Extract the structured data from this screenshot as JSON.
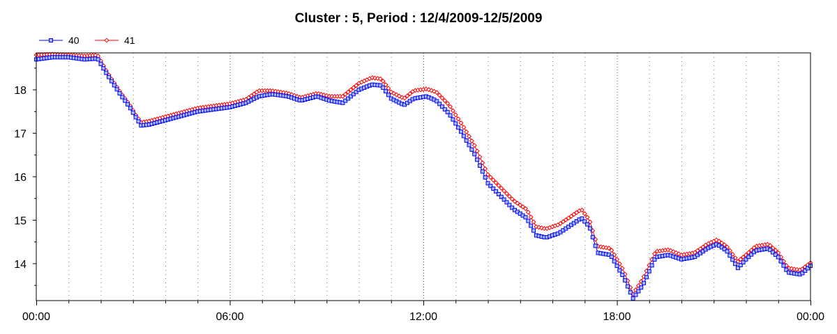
{
  "chart_data": {
    "type": "line",
    "title": "Cluster : 5, Period : 12/4/2009-12/5/2009",
    "xlabel": "",
    "ylabel": "",
    "x_ticks": [
      "00:00",
      "06:00",
      "12:00",
      "18:00",
      "00:00"
    ],
    "x_range_hours": [
      0,
      24
    ],
    "ylim": [
      13.15,
      18.85
    ],
    "y_ticks": [
      14,
      15,
      16,
      17,
      18
    ],
    "grid": "vertical-dotted",
    "legend_position": "top-left",
    "series": [
      {
        "name": "40",
        "color": "#0000ff",
        "fill": "#aabbee",
        "marker": "square",
        "points": [
          [
            0,
            18.7
          ],
          [
            0.5,
            18.75
          ],
          [
            1.0,
            18.75
          ],
          [
            1.5,
            18.7
          ],
          [
            1.9,
            18.72
          ],
          [
            2.2,
            18.35
          ],
          [
            2.6,
            17.9
          ],
          [
            2.9,
            17.6
          ],
          [
            3.1,
            17.35
          ],
          [
            3.25,
            17.18
          ],
          [
            3.5,
            17.2
          ],
          [
            4.0,
            17.3
          ],
          [
            4.5,
            17.4
          ],
          [
            5.0,
            17.5
          ],
          [
            5.5,
            17.55
          ],
          [
            6.0,
            17.6
          ],
          [
            6.5,
            17.7
          ],
          [
            6.9,
            17.85
          ],
          [
            7.3,
            17.9
          ],
          [
            7.8,
            17.85
          ],
          [
            8.2,
            17.75
          ],
          [
            8.7,
            17.85
          ],
          [
            9.1,
            17.75
          ],
          [
            9.5,
            17.7
          ],
          [
            10.0,
            18.0
          ],
          [
            10.4,
            18.12
          ],
          [
            10.7,
            18.1
          ],
          [
            11.0,
            17.8
          ],
          [
            11.4,
            17.65
          ],
          [
            11.7,
            17.8
          ],
          [
            12.1,
            17.85
          ],
          [
            12.4,
            17.75
          ],
          [
            12.8,
            17.45
          ],
          [
            13.2,
            17.0
          ],
          [
            13.6,
            16.5
          ],
          [
            14.0,
            15.85
          ],
          [
            14.4,
            15.55
          ],
          [
            14.8,
            15.25
          ],
          [
            15.2,
            15.05
          ],
          [
            15.5,
            14.65
          ],
          [
            15.8,
            14.6
          ],
          [
            16.2,
            14.7
          ],
          [
            16.5,
            14.85
          ],
          [
            16.9,
            15.05
          ],
          [
            17.15,
            14.85
          ],
          [
            17.4,
            14.25
          ],
          [
            17.8,
            14.2
          ],
          [
            18.2,
            13.7
          ],
          [
            18.5,
            13.2
          ],
          [
            18.8,
            13.5
          ],
          [
            19.2,
            14.15
          ],
          [
            19.6,
            14.2
          ],
          [
            20.0,
            14.1
          ],
          [
            20.4,
            14.15
          ],
          [
            20.8,
            14.35
          ],
          [
            21.1,
            14.45
          ],
          [
            21.4,
            14.3
          ],
          [
            21.75,
            13.9
          ],
          [
            22.0,
            14.1
          ],
          [
            22.3,
            14.3
          ],
          [
            22.7,
            14.35
          ],
          [
            23.0,
            14.15
          ],
          [
            23.3,
            13.8
          ],
          [
            23.7,
            13.75
          ],
          [
            24.0,
            13.95
          ]
        ]
      },
      {
        "name": "41",
        "color": "#ff0000",
        "fill": "#ffffff",
        "marker": "diamond",
        "points": [
          [
            0,
            18.8
          ],
          [
            0.5,
            18.82
          ],
          [
            1.0,
            18.8
          ],
          [
            1.5,
            18.78
          ],
          [
            1.9,
            18.8
          ],
          [
            2.2,
            18.4
          ],
          [
            2.6,
            17.95
          ],
          [
            2.9,
            17.65
          ],
          [
            3.1,
            17.4
          ],
          [
            3.25,
            17.25
          ],
          [
            3.5,
            17.28
          ],
          [
            4.0,
            17.38
          ],
          [
            4.5,
            17.48
          ],
          [
            5.0,
            17.58
          ],
          [
            5.5,
            17.63
          ],
          [
            6.0,
            17.68
          ],
          [
            6.5,
            17.78
          ],
          [
            6.9,
            17.98
          ],
          [
            7.3,
            17.98
          ],
          [
            7.8,
            17.92
          ],
          [
            8.2,
            17.82
          ],
          [
            8.7,
            17.92
          ],
          [
            9.1,
            17.85
          ],
          [
            9.5,
            17.85
          ],
          [
            10.0,
            18.15
          ],
          [
            10.4,
            18.28
          ],
          [
            10.7,
            18.25
          ],
          [
            11.0,
            17.95
          ],
          [
            11.4,
            17.8
          ],
          [
            11.7,
            17.98
          ],
          [
            12.1,
            18.02
          ],
          [
            12.4,
            17.95
          ],
          [
            12.8,
            17.65
          ],
          [
            13.2,
            17.2
          ],
          [
            13.6,
            16.7
          ],
          [
            14.0,
            16.05
          ],
          [
            14.4,
            15.75
          ],
          [
            14.8,
            15.45
          ],
          [
            15.2,
            15.25
          ],
          [
            15.5,
            14.85
          ],
          [
            15.8,
            14.8
          ],
          [
            16.2,
            14.9
          ],
          [
            16.5,
            15.05
          ],
          [
            16.9,
            15.25
          ],
          [
            17.15,
            15.0
          ],
          [
            17.4,
            14.4
          ],
          [
            17.8,
            14.35
          ],
          [
            18.2,
            13.85
          ],
          [
            18.5,
            13.3
          ],
          [
            18.8,
            13.65
          ],
          [
            19.2,
            14.28
          ],
          [
            19.6,
            14.32
          ],
          [
            20.0,
            14.2
          ],
          [
            20.4,
            14.25
          ],
          [
            20.8,
            14.45
          ],
          [
            21.1,
            14.55
          ],
          [
            21.4,
            14.4
          ],
          [
            21.75,
            14.05
          ],
          [
            22.0,
            14.2
          ],
          [
            22.3,
            14.4
          ],
          [
            22.7,
            14.45
          ],
          [
            23.0,
            14.25
          ],
          [
            23.3,
            13.9
          ],
          [
            23.7,
            13.85
          ],
          [
            24.0,
            14.02
          ]
        ]
      }
    ]
  }
}
